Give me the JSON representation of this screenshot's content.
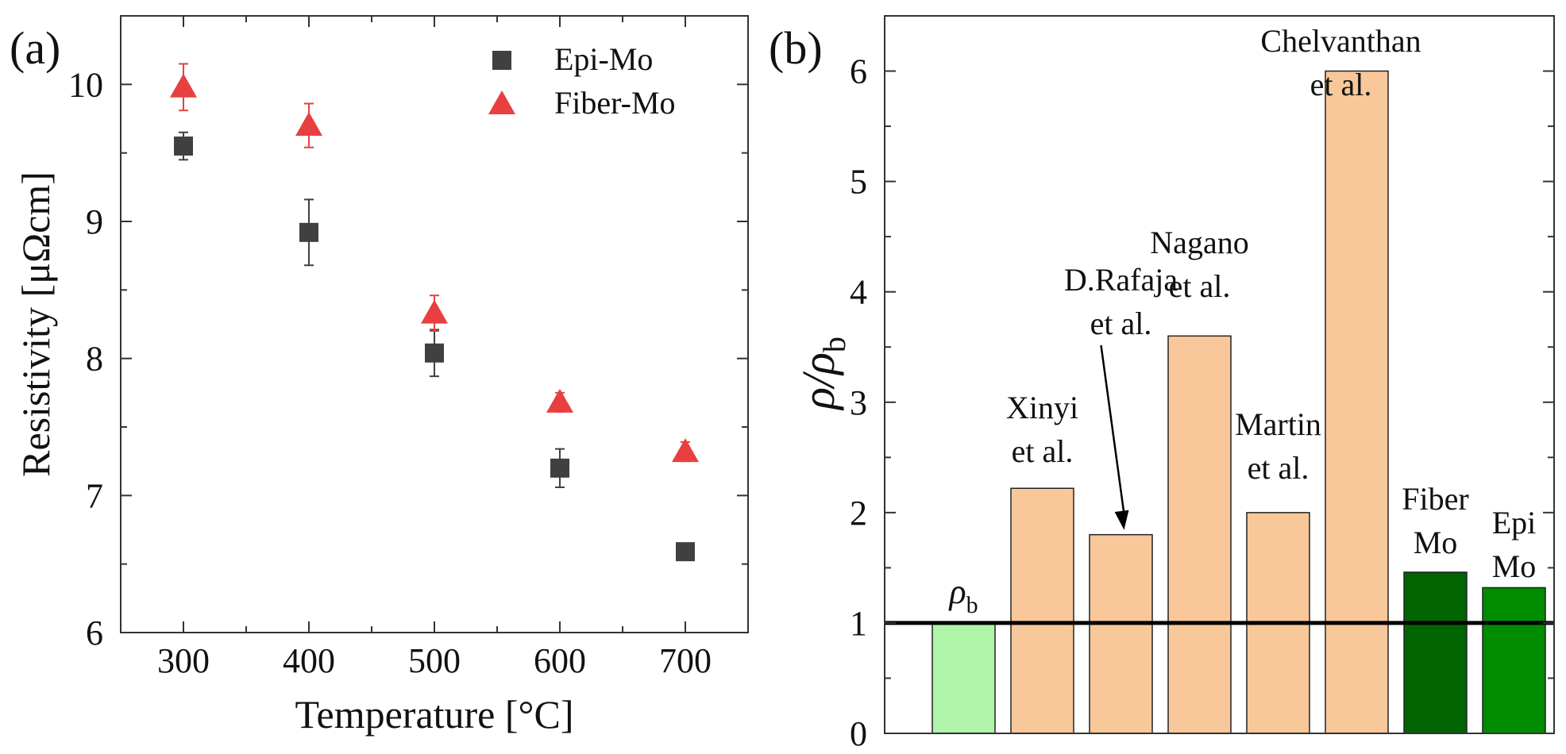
{
  "chart_data": [
    {
      "panel_label": "(a)",
      "type": "scatter",
      "xlabel": "Temperature [°C]",
      "ylabel": "Resistivity [μΩcm]",
      "xlim": [
        250,
        750
      ],
      "ylim": [
        6,
        10.5
      ],
      "x_ticks": [
        "300",
        "400",
        "500",
        "600",
        "700"
      ],
      "y_ticks": [
        "6",
        "7",
        "8",
        "9",
        "10"
      ],
      "legend_position": "top-right",
      "series": [
        {
          "name": "Epi-Mo",
          "marker": "square",
          "color": "#404040",
          "x": [
            300,
            400,
            500,
            600,
            700
          ],
          "y": [
            9.55,
            8.92,
            8.04,
            7.2,
            6.59
          ],
          "yerr": [
            0.1,
            0.24,
            0.17,
            0.14,
            0.0
          ]
        },
        {
          "name": "Fiber-Mo",
          "marker": "triangle",
          "color": "#e84040",
          "x": [
            300,
            400,
            500,
            600,
            700
          ],
          "y": [
            9.98,
            9.7,
            8.33,
            7.68,
            7.32
          ],
          "yerr": [
            0.17,
            0.16,
            0.13,
            0.07,
            0.07
          ]
        }
      ]
    },
    {
      "panel_label": "(b)",
      "type": "bar",
      "ylabel_main": "ρ/ρ",
      "ylabel_sub": "b",
      "ylim": [
        0,
        6.5
      ],
      "y_ticks": [
        "0",
        "1",
        "2",
        "3",
        "4",
        "5",
        "6"
      ],
      "reference_line": 1,
      "bars": [
        {
          "name": "ρb",
          "value": 1.0,
          "color": "#b0f5aa",
          "label_lines": [
            "ρ"
          ],
          "label_sub": "b"
        },
        {
          "name": "Xinyi et al.",
          "value": 2.22,
          "color": "#f8c89a",
          "label_lines": [
            "Xinyi",
            "et al."
          ]
        },
        {
          "name": "D.Rafaja et al.",
          "value": 1.8,
          "color": "#f8c89a",
          "label_lines": [
            "D.Rafaja",
            "et al."
          ]
        },
        {
          "name": "Nagano et al.",
          "value": 3.6,
          "color": "#f8c89a",
          "label_lines": [
            "Nagano",
            "et al."
          ]
        },
        {
          "name": "Martin et al.",
          "value": 2.0,
          "color": "#f8c89a",
          "label_lines": [
            "Martin",
            "et al."
          ]
        },
        {
          "name": "Chelvanthan et al.",
          "value": 6.0,
          "color": "#f8c89a",
          "label_lines": [
            "Chelvanthan",
            "et al."
          ]
        },
        {
          "name": "Fiber Mo",
          "value": 1.46,
          "color": "#006400",
          "label_lines": [
            "Fiber",
            "Mo"
          ]
        },
        {
          "name": "Epi Mo",
          "value": 1.32,
          "color": "#008c00",
          "label_lines": [
            "Epi",
            "Mo"
          ]
        }
      ]
    }
  ]
}
